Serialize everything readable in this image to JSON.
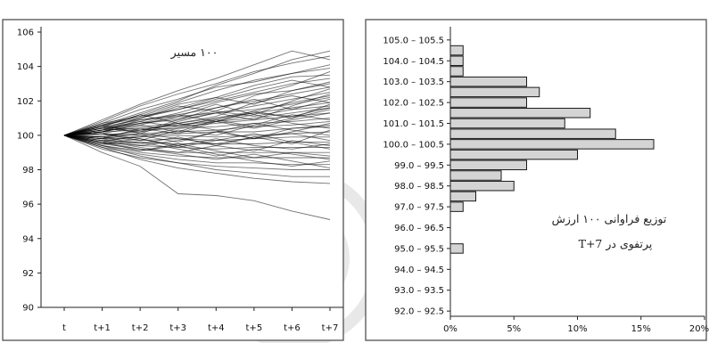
{
  "colors": {
    "paths": "#000000",
    "bars": "#d4d4d4",
    "bar_edge": "#1a1a1a",
    "frame": "#444444"
  },
  "chart_data": [
    {
      "type": "line",
      "annotation": "۱۰۰ مسیر",
      "x": [
        "t",
        "t+1",
        "t+2",
        "t+3",
        "t+4",
        "t+5",
        "t+6",
        "t+7"
      ],
      "ylim": [
        90,
        106
      ],
      "yticks": [
        90,
        92,
        94,
        96,
        98,
        100,
        102,
        104,
        106
      ],
      "grid": false,
      "path_count": 100,
      "series": [
        {
          "values": [
            100,
            100.6,
            101.3,
            102.0,
            102.9,
            103.6,
            104.4,
            104.9
          ]
        },
        {
          "values": [
            100,
            100.8,
            101.7,
            102.4,
            103.0,
            103.7,
            104.2,
            104.6
          ]
        },
        {
          "values": [
            100,
            100.5,
            101.2,
            101.9,
            102.6,
            103.2,
            103.6,
            104.1
          ]
        },
        {
          "values": [
            100,
            100.7,
            101.5,
            102.1,
            102.8,
            103.1,
            103.6,
            103.9
          ]
        },
        {
          "values": [
            100,
            100.4,
            101.0,
            101.6,
            102.2,
            102.9,
            103.4,
            103.5
          ]
        },
        {
          "values": [
            100,
            100.6,
            101.1,
            101.5,
            102.0,
            102.5,
            103.0,
            103.3
          ]
        },
        {
          "values": [
            100,
            100.3,
            100.8,
            101.3,
            101.9,
            102.4,
            102.6,
            103.0
          ]
        },
        {
          "values": [
            100,
            100.5,
            100.9,
            101.2,
            101.6,
            102.0,
            102.4,
            102.8
          ]
        },
        {
          "values": [
            100,
            100.2,
            100.6,
            101.1,
            101.3,
            101.7,
            102.1,
            102.5
          ]
        },
        {
          "values": [
            100,
            100.4,
            100.7,
            100.9,
            101.3,
            101.5,
            101.8,
            102.2
          ]
        },
        {
          "values": [
            100,
            100.1,
            100.5,
            100.7,
            101.0,
            101.3,
            101.6,
            101.9
          ]
        },
        {
          "values": [
            100,
            100.3,
            100.4,
            100.6,
            100.8,
            101.0,
            101.3,
            101.6
          ]
        },
        {
          "values": [
            100,
            100.0,
            100.2,
            100.5,
            100.7,
            100.9,
            101.1,
            101.3
          ]
        },
        {
          "values": [
            100,
            100.2,
            100.3,
            100.4,
            100.5,
            100.7,
            100.8,
            101.0
          ]
        },
        {
          "values": [
            100,
            99.9,
            100.1,
            100.2,
            100.3,
            100.5,
            100.6,
            100.8
          ]
        },
        {
          "values": [
            100,
            100.1,
            100.0,
            100.1,
            100.2,
            100.2,
            100.4,
            100.5
          ]
        },
        {
          "values": [
            100,
            99.8,
            99.9,
            100.0,
            99.9,
            100.0,
            100.1,
            100.2
          ]
        },
        {
          "values": [
            100,
            99.9,
            99.7,
            99.8,
            99.7,
            99.8,
            99.9,
            99.9
          ]
        },
        {
          "values": [
            100,
            99.7,
            99.6,
            99.5,
            99.5,
            99.5,
            99.6,
            99.6
          ]
        },
        {
          "values": [
            100,
            99.6,
            99.4,
            99.3,
            99.2,
            99.3,
            99.3,
            99.3
          ]
        },
        {
          "values": [
            100,
            99.5,
            99.2,
            99.0,
            99.0,
            99.0,
            99.0,
            99.0
          ]
        },
        {
          "values": [
            100,
            99.4,
            99.0,
            98.8,
            98.7,
            98.7,
            98.7,
            98.7
          ]
        },
        {
          "values": [
            100,
            99.3,
            98.9,
            98.6,
            98.4,
            98.4,
            98.3,
            98.3
          ]
        },
        {
          "values": [
            100,
            99.2,
            98.7,
            98.4,
            98.2,
            98.1,
            98.0,
            98.0
          ]
        },
        {
          "values": [
            100,
            99.4,
            98.8,
            98.4,
            98.0,
            97.8,
            97.6,
            97.6
          ]
        },
        {
          "values": [
            100,
            99.3,
            98.6,
            98.1,
            97.8,
            97.5,
            97.3,
            97.2
          ]
        },
        {
          "values": [
            100,
            99.0,
            98.2,
            96.6,
            96.5,
            96.2,
            95.6,
            95.1
          ]
        },
        {
          "values": [
            100,
            100.9,
            101.8,
            102.6,
            103.3,
            104.1,
            104.9,
            104.4
          ]
        },
        {
          "values": [
            100,
            100.3,
            101.0,
            101.7,
            101.4,
            102.3,
            102.9,
            103.7
          ]
        },
        {
          "values": [
            100,
            100.2,
            100.9,
            101.1,
            101.8,
            101.2,
            102.0,
            102.7
          ]
        },
        {
          "values": [
            100,
            100.4,
            100.2,
            100.9,
            101.6,
            102.1,
            101.5,
            102.1
          ]
        },
        {
          "values": [
            100,
            99.8,
            100.4,
            100.1,
            100.8,
            101.4,
            101.0,
            101.8
          ]
        },
        {
          "values": [
            100,
            100.1,
            99.7,
            100.3,
            100.0,
            100.6,
            101.2,
            100.9
          ]
        },
        {
          "values": [
            100,
            99.6,
            100.0,
            99.6,
            100.2,
            99.8,
            100.4,
            100.6
          ]
        },
        {
          "values": [
            100,
            99.9,
            99.5,
            99.9,
            99.4,
            99.9,
            99.5,
            100.3
          ]
        },
        {
          "values": [
            100,
            99.7,
            99.3,
            99.0,
            99.4,
            99.1,
            99.7,
            99.4
          ]
        },
        {
          "values": [
            100,
            99.5,
            99.6,
            99.2,
            98.8,
            99.2,
            98.9,
            98.6
          ]
        },
        {
          "values": [
            100,
            99.6,
            99.1,
            99.4,
            98.9,
            98.5,
            98.2,
            98.5
          ]
        },
        {
          "values": [
            100,
            100.6,
            100.1,
            100.8,
            101.3,
            100.9,
            101.7,
            102.4
          ]
        },
        {
          "values": [
            100,
            100.5,
            101.2,
            100.7,
            101.1,
            101.9,
            102.3,
            101.9
          ]
        },
        {
          "values": [
            100,
            100.7,
            101.1,
            101.8,
            102.2,
            101.8,
            102.6,
            103.1
          ]
        },
        {
          "values": [
            100,
            100.2,
            100.6,
            100.2,
            100.9,
            100.5,
            101.0,
            101.5
          ]
        },
        {
          "values": [
            100,
            99.8,
            99.4,
            99.7,
            100.2,
            100.7,
            100.3,
            100.0
          ]
        },
        {
          "values": [
            100,
            100.3,
            100.7,
            101.2,
            100.8,
            100.4,
            100.9,
            101.3
          ]
        },
        {
          "values": [
            100,
            99.7,
            99.9,
            100.4,
            100.8,
            101.2,
            100.7,
            100.4
          ]
        },
        {
          "values": [
            100,
            100.1,
            99.8,
            99.3,
            99.7,
            100.1,
            99.6,
            99.2
          ]
        },
        {
          "values": [
            100,
            99.9,
            100.3,
            100.7,
            100.3,
            99.8,
            100.2,
            100.7
          ]
        },
        {
          "values": [
            100,
            100.4,
            100.8,
            100.5,
            101.0,
            101.4,
            101.9,
            102.3
          ]
        },
        {
          "values": [
            100,
            99.6,
            99.2,
            98.9,
            98.6,
            98.9,
            98.5,
            98.1
          ]
        },
        {
          "values": [
            100,
            100.6,
            101.0,
            101.5,
            102.1,
            102.7,
            103.2,
            102.8
          ]
        },
        {
          "values": [
            100,
            99.4,
            99.1,
            99.5,
            99.1,
            98.7,
            99.0,
            98.8
          ]
        },
        {
          "values": [
            100,
            100.2,
            100.7,
            101.0,
            101.4,
            101.1,
            101.5,
            101.7
          ]
        },
        {
          "values": [
            100,
            99.8,
            100.1,
            99.8,
            99.5,
            99.9,
            100.1,
            99.7
          ]
        },
        {
          "values": [
            100,
            100.5,
            100.3,
            100.6,
            100.9,
            101.3,
            101.1,
            101.6
          ]
        },
        {
          "values": [
            100,
            99.5,
            99.8,
            99.4,
            99.8,
            99.4,
            99.2,
            99.5
          ]
        }
      ]
    },
    {
      "type": "bar",
      "orientation": "horizontal",
      "annotation_line1": "توزیع فراوانی ۱۰۰ ارزش",
      "annotation_line2": "پرتفوی در T+7",
      "categories": [
        "105.0 – 105.5",
        "104.0 – 104.5",
        "103.0 – 103.5",
        "102.0 – 102.5",
        "101.0 – 101.5",
        "100.0 – 100.5",
        "99.0 – 99.5",
        "98.0 – 98.5",
        "97.0 – 97.5",
        "96.0 – 96.5",
        "95.0 – 95.5",
        "94.0 – 94.5",
        "93.0 – 93.5",
        "92.0 – 92.5"
      ],
      "bins": [
        {
          "lower": 105.0,
          "value": 0
        },
        {
          "lower": 104.5,
          "value": 1
        },
        {
          "lower": 104.0,
          "value": 1
        },
        {
          "lower": 103.5,
          "value": 1
        },
        {
          "lower": 103.0,
          "value": 6
        },
        {
          "lower": 102.5,
          "value": 7
        },
        {
          "lower": 102.0,
          "value": 6
        },
        {
          "lower": 101.5,
          "value": 11
        },
        {
          "lower": 101.0,
          "value": 9
        },
        {
          "lower": 100.5,
          "value": 13
        },
        {
          "lower": 100.0,
          "value": 16
        },
        {
          "lower": 99.5,
          "value": 10
        },
        {
          "lower": 99.0,
          "value": 6
        },
        {
          "lower": 98.5,
          "value": 4
        },
        {
          "lower": 98.0,
          "value": 5
        },
        {
          "lower": 97.5,
          "value": 2
        },
        {
          "lower": 97.0,
          "value": 1
        },
        {
          "lower": 95.0,
          "value": 1
        }
      ],
      "xticks": [
        "0%",
        "5%",
        "10%",
        "15%",
        "20%"
      ],
      "xlim": [
        0,
        20
      ],
      "grid": false
    }
  ]
}
